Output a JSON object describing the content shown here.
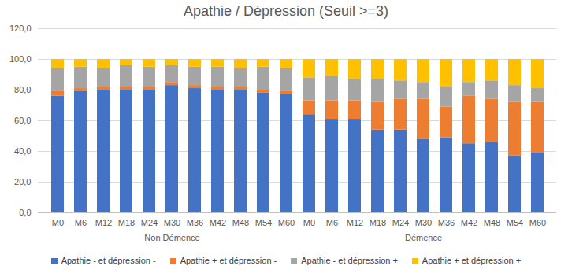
{
  "chart_data": {
    "type": "bar",
    "stacked": true,
    "title": "Apathie / Dépression (Seuil >=3)",
    "categories": [
      "M0",
      "M6",
      "M12",
      "M18",
      "M24",
      "M30",
      "M36",
      "M42",
      "M48",
      "M54",
      "M60",
      "M0",
      "M6",
      "M12",
      "M18",
      "M24",
      "M30",
      "M36",
      "M42",
      "M48",
      "M54",
      "M60"
    ],
    "groups": [
      {
        "name": "Non Démence",
        "size": 11
      },
      {
        "name": "Démence",
        "size": 11
      }
    ],
    "series": [
      {
        "name": "Apathie - et dépression -",
        "color": "#4472c4",
        "values": [
          76,
          79,
          80,
          80,
          80,
          83,
          81,
          80,
          80,
          78,
          77,
          64,
          61,
          61,
          54,
          54,
          48,
          49,
          45,
          46,
          37,
          39
        ]
      },
      {
        "name": "Apathie + et dépression -",
        "color": "#ed7d31",
        "values": [
          3,
          2,
          2,
          2,
          2,
          2,
          2,
          2,
          2,
          2,
          2,
          9,
          12,
          12,
          18,
          20,
          26,
          20,
          31,
          28,
          35,
          33
        ]
      },
      {
        "name": "Apathie - et dépression +",
        "color": "#a5a5a5",
        "values": [
          15,
          14,
          12,
          14,
          13,
          11,
          12,
          13,
          12,
          15,
          15,
          15,
          16,
          14,
          15,
          12,
          11,
          13,
          9,
          12,
          11,
          9
        ]
      },
      {
        "name": "Apathie + et dépression +",
        "color": "#ffc000",
        "values": [
          6,
          5,
          6,
          4,
          5,
          4,
          5,
          5,
          6,
          5,
          6,
          12,
          11,
          13,
          13,
          14,
          15,
          18,
          15,
          14,
          17,
          19
        ]
      }
    ],
    "ylim": [
      0,
      120
    ],
    "yticks": [
      {
        "value": 0,
        "label": "0,0"
      },
      {
        "value": 20,
        "label": "20,0"
      },
      {
        "value": 40,
        "label": "40,0"
      },
      {
        "value": 60,
        "label": "60,0"
      },
      {
        "value": 80,
        "label": "80,0"
      },
      {
        "value": 100,
        "label": "100,0"
      },
      {
        "value": 120,
        "label": "120,0"
      }
    ],
    "grid": true,
    "legend": "bottom"
  }
}
